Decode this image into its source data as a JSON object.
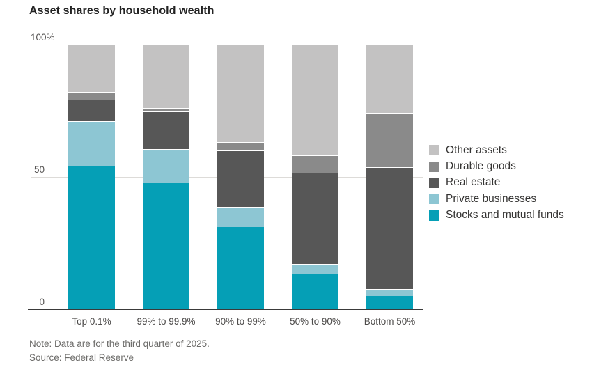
{
  "title": "Asset shares by household wealth",
  "note": "Note: Data are for the third quarter of 2025.",
  "source": "Source: Federal Reserve",
  "colors": {
    "stocks": "#059fb6",
    "private_businesses": "#8dc6d3",
    "real_estate": "#575757",
    "durable_goods": "#8a8a8a",
    "other_assets": "#c3c2c2",
    "axis": "#3a3a3a",
    "grid": "#dddbd8"
  },
  "chart_data": {
    "type": "bar",
    "stacked": true,
    "orientation": "vertical",
    "categories": [
      "Top 0.1%",
      "99% to 99.9%",
      "90% to 99%",
      "50% to 90%",
      "Bottom 50%"
    ],
    "series": [
      {
        "name": "Stocks and mutual funds",
        "color": "#059fb6",
        "values": [
          54,
          47.5,
          31,
          13,
          5
        ]
      },
      {
        "name": "Private businesses",
        "color": "#8dc6d3",
        "values": [
          17,
          13,
          7.5,
          4,
          2.5
        ]
      },
      {
        "name": "Real estate",
        "color": "#575757",
        "values": [
          8,
          14,
          21.5,
          34.5,
          46
        ]
      },
      {
        "name": "Durable goods",
        "color": "#8a8a8a",
        "values": [
          3,
          1.5,
          3,
          6.5,
          20.5
        ]
      },
      {
        "name": "Other assets",
        "color": "#c3c2c2",
        "values": [
          18,
          24,
          37,
          42,
          26
        ]
      }
    ],
    "ylabel": "",
    "xlabel": "",
    "ylim": [
      0,
      100
    ],
    "yticks": [
      {
        "value": 100,
        "label": "100%"
      },
      {
        "value": 50,
        "label": "50"
      },
      {
        "value": 0,
        "label": "0"
      }
    ],
    "grid": true,
    "legend_position": "right",
    "legend_order_top_to_bottom": [
      "Other assets",
      "Durable goods",
      "Real estate",
      "Private businesses",
      "Stocks and mutual funds"
    ]
  }
}
